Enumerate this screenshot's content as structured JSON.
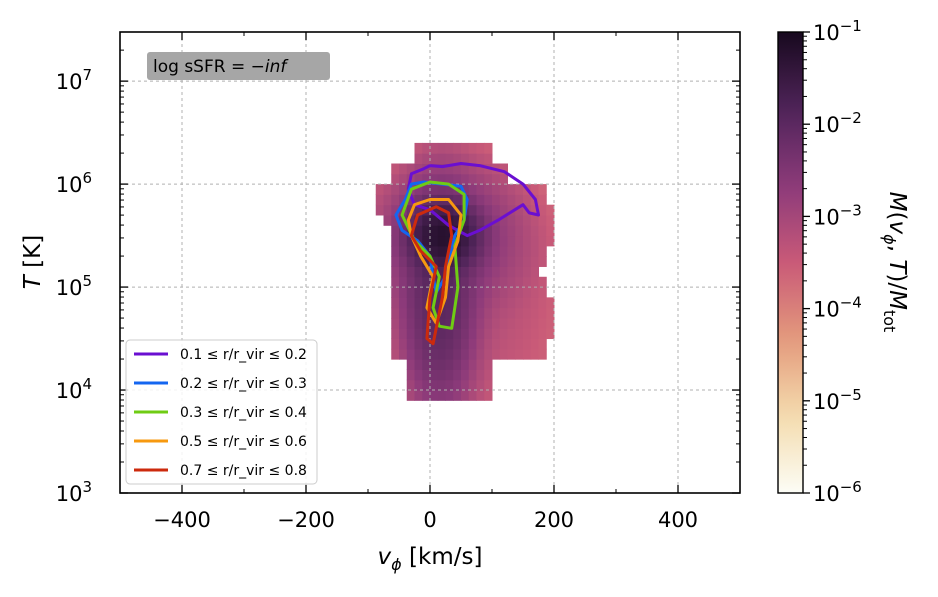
{
  "chart_data": {
    "type": "heatmap",
    "annotation": {
      "text": "log sSFR = − inf",
      "math_text": "log sSFR = −inf"
    },
    "xlabel": "v_ϕ [km/s]",
    "ylabel": "T [K]",
    "xlim": [
      -500,
      500
    ],
    "ylim": [
      1000,
      30000000
    ],
    "yscale": "log",
    "xticks": [
      -400,
      -200,
      0,
      200,
      400
    ],
    "xtick_labels": [
      "−400",
      "−200",
      "0",
      "200",
      "400"
    ],
    "yticks": [
      1000,
      10000,
      100000,
      1000000,
      10000000
    ],
    "ytick_labels": [
      {
        "base": "10",
        "exp": "3"
      },
      {
        "base": "10",
        "exp": "4"
      },
      {
        "base": "10",
        "exp": "5"
      },
      {
        "base": "10",
        "exp": "6"
      },
      {
        "base": "10",
        "exp": "7"
      }
    ],
    "grid": true,
    "colorbar": {
      "label": "M(v_ϕ, T)/M_tot",
      "scale": "log",
      "range": [
        1e-06,
        0.1
      ],
      "colormap": "magma_r",
      "colors": [
        "#fcfdf6",
        "#f4dcae",
        "#e49a7c",
        "#c95a78",
        "#8c3a7a",
        "#4f2459",
        "#17091e"
      ],
      "tick_labels": [
        {
          "base": "10",
          "exp": "−1"
        },
        {
          "base": "10",
          "exp": "−2"
        },
        {
          "base": "10",
          "exp": "−3"
        },
        {
          "base": "10",
          "exp": "−4"
        },
        {
          "base": "10",
          "exp": "−5"
        },
        {
          "base": "10",
          "exp": "−6"
        }
      ]
    },
    "heatmap_description": {
      "peak": {
        "v_phi": 20,
        "logT": 5.5,
        "value": 0.05
      },
      "note": "2D mass-weighted histogram; gas concentrated near v_phi≈0–50 km/s, T≈3×10^5 K, with a tail to ~10^4 K and broad envelope from v_phi≈−80 to 200 km/s"
    },
    "legend_position": "lower-left",
    "series": [
      {
        "name": "0.1 ≤ r/r_vir ≤ 0.2",
        "color": "#6a0fd1",
        "contour": [
          [
            -30,
            6.1
          ],
          [
            -10,
            6.15
          ],
          [
            0,
            6.18
          ],
          [
            20,
            6.17
          ],
          [
            50,
            6.2
          ],
          [
            80,
            6.18
          ],
          [
            120,
            6.12
          ],
          [
            150,
            6.0
          ],
          [
            170,
            5.85
          ],
          [
            175,
            5.7
          ],
          [
            160,
            5.72
          ],
          [
            150,
            5.8
          ],
          [
            110,
            5.65
          ],
          [
            80,
            5.55
          ],
          [
            60,
            5.5
          ],
          [
            30,
            5.6
          ],
          [
            0,
            5.75
          ],
          [
            -25,
            5.8
          ],
          [
            -35,
            5.95
          ],
          [
            -30,
            6.1
          ]
        ]
      },
      {
        "name": "0.2 ≤ r/r_vir ≤ 0.3",
        "color": "#1466f0",
        "contour": [
          [
            -40,
            5.85
          ],
          [
            -30,
            6.0
          ],
          [
            -10,
            6.02
          ],
          [
            20,
            6.0
          ],
          [
            50,
            5.98
          ],
          [
            60,
            5.85
          ],
          [
            55,
            5.65
          ],
          [
            40,
            5.5
          ],
          [
            25,
            5.1
          ],
          [
            10,
            4.95
          ],
          [
            5,
            5.1
          ],
          [
            0,
            5.3
          ],
          [
            -20,
            5.45
          ],
          [
            -45,
            5.55
          ],
          [
            -55,
            5.7
          ],
          [
            -40,
            5.85
          ]
        ]
      },
      {
        "name": "0.3 ≤ r/r_vir ≤ 0.4",
        "color": "#6fcc14",
        "contour": [
          [
            -30,
            5.95
          ],
          [
            0,
            6.02
          ],
          [
            30,
            6.0
          ],
          [
            55,
            5.9
          ],
          [
            55,
            5.65
          ],
          [
            40,
            5.4
          ],
          [
            45,
            5.0
          ],
          [
            35,
            4.6
          ],
          [
            15,
            4.62
          ],
          [
            5,
            4.8
          ],
          [
            15,
            5.1
          ],
          [
            0,
            5.3
          ],
          [
            -25,
            5.45
          ],
          [
            -45,
            5.7
          ],
          [
            -30,
            5.95
          ]
        ]
      },
      {
        "name": "0.5 ≤ r/r_vir ≤ 0.6",
        "color": "#f7990f",
        "contour": [
          [
            -25,
            5.8
          ],
          [
            0,
            5.85
          ],
          [
            30,
            5.85
          ],
          [
            50,
            5.7
          ],
          [
            45,
            5.45
          ],
          [
            30,
            5.2
          ],
          [
            25,
            4.9
          ],
          [
            10,
            4.65
          ],
          [
            -5,
            4.8
          ],
          [
            5,
            5.1
          ],
          [
            -15,
            5.3
          ],
          [
            -30,
            5.5
          ],
          [
            -35,
            5.65
          ],
          [
            -25,
            5.8
          ]
        ]
      },
      {
        "name": "0.7 ≤ r/r_vir ≤ 0.8",
        "color": "#cc2a0d",
        "contour": [
          [
            -20,
            5.7
          ],
          [
            10,
            5.78
          ],
          [
            30,
            5.72
          ],
          [
            35,
            5.5
          ],
          [
            25,
            5.2
          ],
          [
            20,
            4.9
          ],
          [
            5,
            4.45
          ],
          [
            -5,
            4.5
          ],
          [
            0,
            4.9
          ],
          [
            10,
            5.2
          ],
          [
            -15,
            5.35
          ],
          [
            -30,
            5.5
          ],
          [
            -20,
            5.7
          ]
        ]
      }
    ]
  }
}
